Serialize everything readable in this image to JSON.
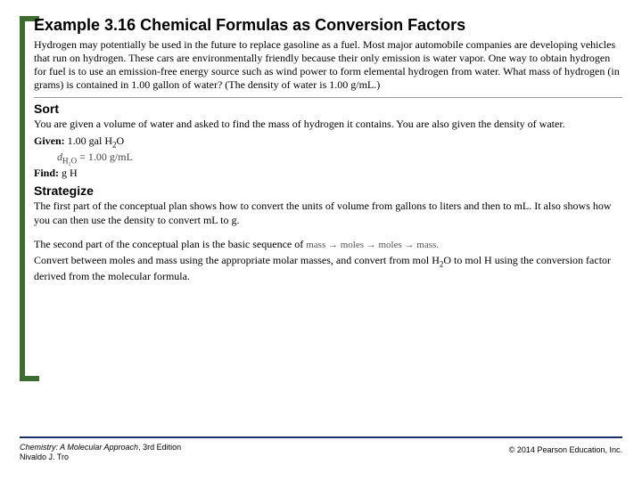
{
  "colors": {
    "accent_bar": "#3e6b2f",
    "footer_rule": "#1a2e6b",
    "divider": "#999999",
    "text": "#000000",
    "background": "#ffffff"
  },
  "title_prefix": "Example 3.16",
  "title_rest": "  Chemical Formulas as Conversion Factors",
  "intro": "Hydrogen may potentially be used in the future to replace gasoline as a fuel. Most major automobile companies are developing vehicles that run on hydrogen. These cars are environmentally friendly because their only emission is water vapor. One way to obtain hydrogen for fuel is to use an emission-free energy source such as wind power to form elemental hydrogen from water. What mass of hydrogen (in grams) is contained in 1.00 gallon of water? (The density of water is 1.00 g/mL.)",
  "sort": {
    "heading": "Sort",
    "text": "You are given a volume of water and asked to find the mass of hydrogen it contains. You are also given the density of water.",
    "given_label": "Given:",
    "given_value": " 1.00 gal H",
    "given_sub": "2",
    "given_tail": "O",
    "density_expr": "d",
    "density_sub": "H₂O",
    "density_eq": " = 1.00 g/mL",
    "find_label": "Find:",
    "find_value": " g H"
  },
  "strategize": {
    "heading": "Strategize",
    "p1": "The first part of the conceptual plan shows how to convert the units of volume from gallons to liters and then to mL. It also shows how you can then use the density to convert mL to g.",
    "p2a": "The second part of the conceptual plan is the basic sequence of ",
    "seq": "mass → moles → moles → mass.",
    "p2b": "Convert between moles and mass using the appropriate molar masses, and convert from mol H",
    "p2b_sub": "2",
    "p2b_mid": "O to mol H using the conversion factor derived from the molecular formula."
  },
  "footer": {
    "left_line1_italic": "Chemistry: A Molecular Approach",
    "left_line1_rest": ", 3rd Edition",
    "left_line2": "Nivaldo J. Tro",
    "right": "© 2014 Pearson Education, Inc."
  }
}
